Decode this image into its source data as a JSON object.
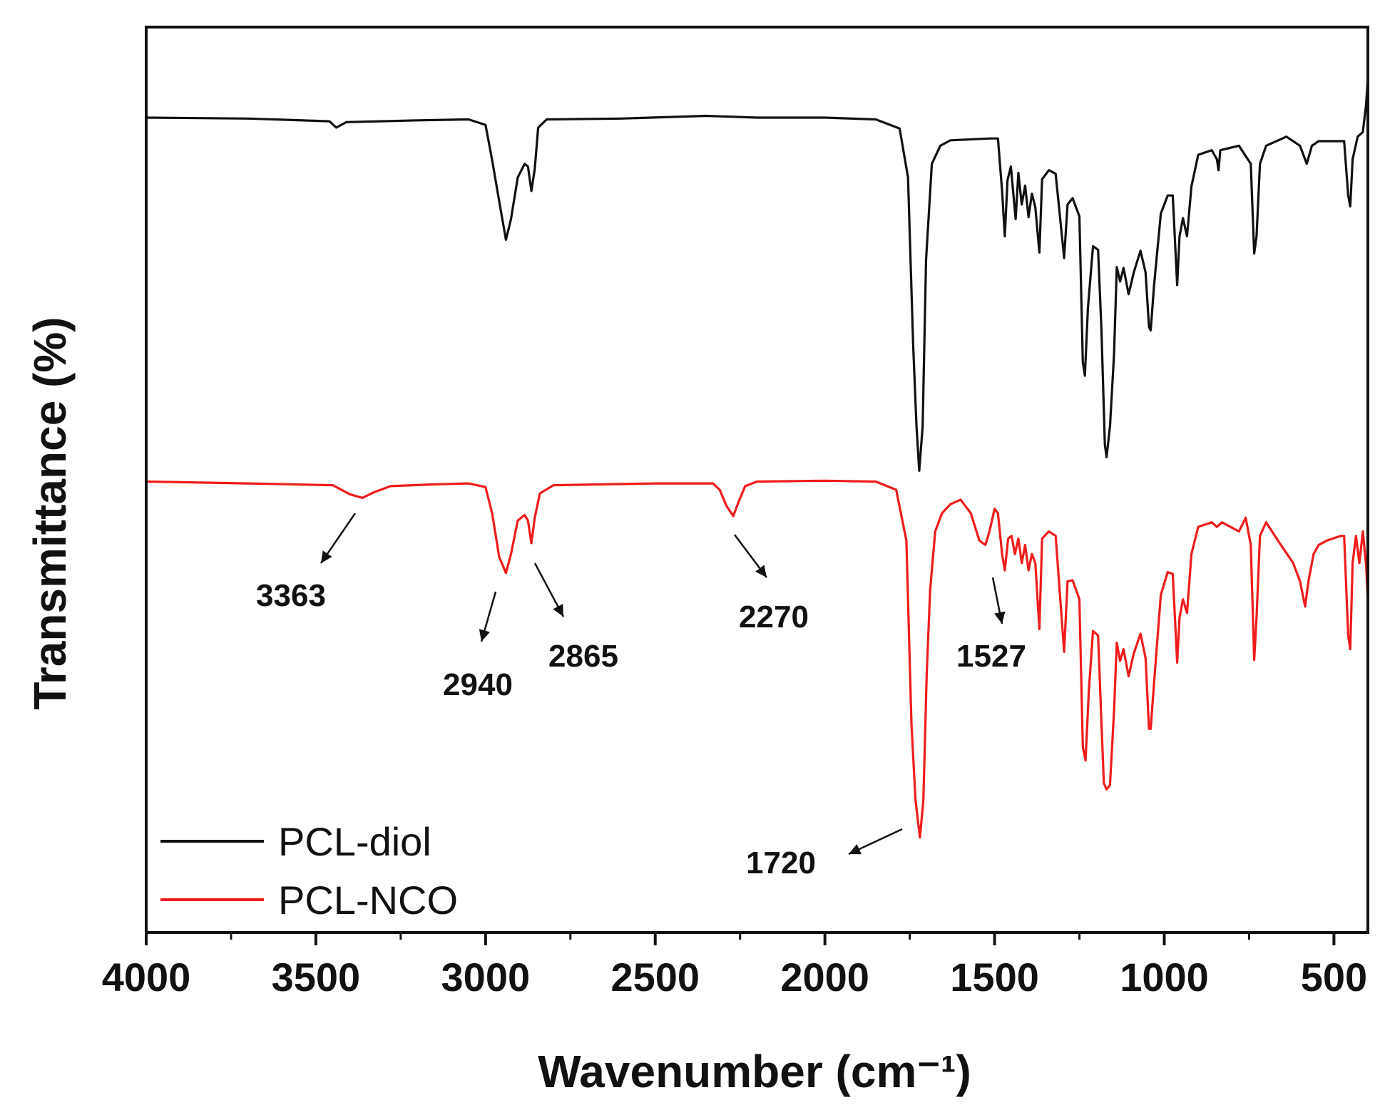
{
  "chart_data": {
    "type": "line",
    "title": "",
    "xlabel": "Wavenumber (cm⁻¹)",
    "ylabel": "Transmittance (%)",
    "xlim": [
      4000,
      400
    ],
    "ylim": [
      0,
      100
    ],
    "x_reversed": true,
    "y_ticks_shown": false,
    "grid": false,
    "legend_position": "bottom-left",
    "x_ticks": [
      4000,
      3500,
      3000,
      2500,
      2000,
      1500,
      1000,
      500
    ],
    "x_tick_labels": [
      "4000",
      "3500",
      "3000",
      "2500",
      "2000",
      "1500",
      "1000",
      "500"
    ],
    "series": [
      {
        "name": "PCL-diol",
        "color": "#111111",
        "points": [
          [
            4000,
            90.0
          ],
          [
            3700,
            89.9
          ],
          [
            3460,
            89.6
          ],
          [
            3440,
            88.9
          ],
          [
            3410,
            89.5
          ],
          [
            3200,
            89.7
          ],
          [
            3050,
            89.8
          ],
          [
            3000,
            89.2
          ],
          [
            2980,
            85.2
          ],
          [
            2960,
            80.8
          ],
          [
            2940,
            76.5
          ],
          [
            2925,
            78.8
          ],
          [
            2905,
            83.4
          ],
          [
            2885,
            84.9
          ],
          [
            2875,
            84.6
          ],
          [
            2865,
            81.9
          ],
          [
            2855,
            84.3
          ],
          [
            2845,
            88.9
          ],
          [
            2820,
            89.8
          ],
          [
            2600,
            89.9
          ],
          [
            2350,
            90.2
          ],
          [
            2200,
            90.0
          ],
          [
            2000,
            90.0
          ],
          [
            1850,
            89.8
          ],
          [
            1780,
            88.8
          ],
          [
            1755,
            83.4
          ],
          [
            1740,
            64.9
          ],
          [
            1730,
            55.9
          ],
          [
            1722,
            51.0
          ],
          [
            1712,
            55.9
          ],
          [
            1702,
            74.3
          ],
          [
            1685,
            84.9
          ],
          [
            1660,
            86.9
          ],
          [
            1630,
            87.5
          ],
          [
            1510,
            87.7
          ],
          [
            1490,
            87.7
          ],
          [
            1478,
            81.9
          ],
          [
            1470,
            76.9
          ],
          [
            1462,
            83.1
          ],
          [
            1452,
            84.6
          ],
          [
            1438,
            78.8
          ],
          [
            1430,
            83.9
          ],
          [
            1420,
            80.4
          ],
          [
            1410,
            82.5
          ],
          [
            1400,
            79.0
          ],
          [
            1390,
            81.6
          ],
          [
            1380,
            80.1
          ],
          [
            1368,
            75.1
          ],
          [
            1360,
            83.2
          ],
          [
            1340,
            84.2
          ],
          [
            1320,
            83.8
          ],
          [
            1295,
            74.5
          ],
          [
            1285,
            80.4
          ],
          [
            1270,
            81.1
          ],
          [
            1250,
            79.1
          ],
          [
            1240,
            63.0
          ],
          [
            1234,
            61.5
          ],
          [
            1225,
            68.9
          ],
          [
            1210,
            75.8
          ],
          [
            1195,
            75.4
          ],
          [
            1185,
            66.4
          ],
          [
            1175,
            53.9
          ],
          [
            1170,
            52.5
          ],
          [
            1160,
            55.9
          ],
          [
            1148,
            63.9
          ],
          [
            1140,
            73.5
          ],
          [
            1130,
            71.9
          ],
          [
            1120,
            73.4
          ],
          [
            1105,
            70.5
          ],
          [
            1090,
            72.9
          ],
          [
            1070,
            75.3
          ],
          [
            1055,
            72.9
          ],
          [
            1045,
            66.9
          ],
          [
            1040,
            66.5
          ],
          [
            1030,
            71.5
          ],
          [
            1010,
            79.4
          ],
          [
            990,
            81.4
          ],
          [
            975,
            81.4
          ],
          [
            962,
            71.5
          ],
          [
            955,
            76.9
          ],
          [
            945,
            78.9
          ],
          [
            933,
            76.9
          ],
          [
            920,
            82.4
          ],
          [
            900,
            85.9
          ],
          [
            860,
            86.4
          ],
          [
            845,
            85.4
          ],
          [
            840,
            84.2
          ],
          [
            835,
            86.4
          ],
          [
            780,
            86.9
          ],
          [
            745,
            84.9
          ],
          [
            735,
            75.0
          ],
          [
            728,
            76.9
          ],
          [
            718,
            84.9
          ],
          [
            700,
            86.9
          ],
          [
            640,
            87.9
          ],
          [
            600,
            86.9
          ],
          [
            580,
            84.9
          ],
          [
            565,
            86.9
          ],
          [
            545,
            87.4
          ],
          [
            520,
            87.4
          ],
          [
            470,
            87.4
          ],
          [
            458,
            81.4
          ],
          [
            452,
            80.2
          ],
          [
            445,
            85.4
          ],
          [
            430,
            87.9
          ],
          [
            415,
            88.4
          ],
          [
            405,
            91.5
          ],
          [
            400,
            94.5
          ]
        ]
      },
      {
        "name": "PCL-NCO",
        "color": "#ee1c1c",
        "points": [
          [
            4000,
            49.8
          ],
          [
            3700,
            49.6
          ],
          [
            3450,
            49.4
          ],
          [
            3400,
            48.4
          ],
          [
            3363,
            48.0
          ],
          [
            3330,
            48.6
          ],
          [
            3280,
            49.3
          ],
          [
            3150,
            49.5
          ],
          [
            3050,
            49.6
          ],
          [
            3000,
            49.2
          ],
          [
            2980,
            46.2
          ],
          [
            2960,
            41.5
          ],
          [
            2940,
            39.7
          ],
          [
            2925,
            41.8
          ],
          [
            2905,
            45.5
          ],
          [
            2885,
            46.1
          ],
          [
            2875,
            45.5
          ],
          [
            2865,
            43.0
          ],
          [
            2855,
            45.8
          ],
          [
            2840,
            48.5
          ],
          [
            2800,
            49.4
          ],
          [
            2500,
            49.6
          ],
          [
            2330,
            49.6
          ],
          [
            2310,
            48.9
          ],
          [
            2290,
            47.1
          ],
          [
            2270,
            46.0
          ],
          [
            2255,
            47.5
          ],
          [
            2235,
            49.3
          ],
          [
            2200,
            49.8
          ],
          [
            2000,
            49.9
          ],
          [
            1850,
            49.8
          ],
          [
            1790,
            48.9
          ],
          [
            1760,
            43.3
          ],
          [
            1745,
            23.1
          ],
          [
            1733,
            14.6
          ],
          [
            1720,
            10.5
          ],
          [
            1710,
            14.6
          ],
          [
            1700,
            28.5
          ],
          [
            1690,
            37.8
          ],
          [
            1675,
            44.3
          ],
          [
            1655,
            46.3
          ],
          [
            1630,
            47.3
          ],
          [
            1600,
            47.8
          ],
          [
            1570,
            46.3
          ],
          [
            1545,
            43.3
          ],
          [
            1527,
            42.8
          ],
          [
            1515,
            44.3
          ],
          [
            1500,
            46.8
          ],
          [
            1490,
            46.3
          ],
          [
            1478,
            41.8
          ],
          [
            1470,
            40.0
          ],
          [
            1460,
            43.5
          ],
          [
            1450,
            43.8
          ],
          [
            1440,
            41.8
          ],
          [
            1430,
            43.5
          ],
          [
            1420,
            40.8
          ],
          [
            1410,
            42.8
          ],
          [
            1400,
            40.0
          ],
          [
            1390,
            41.8
          ],
          [
            1380,
            40.8
          ],
          [
            1368,
            33.5
          ],
          [
            1360,
            43.5
          ],
          [
            1340,
            44.3
          ],
          [
            1320,
            43.8
          ],
          [
            1295,
            31.0
          ],
          [
            1285,
            38.8
          ],
          [
            1270,
            38.9
          ],
          [
            1250,
            36.8
          ],
          [
            1240,
            20.5
          ],
          [
            1232,
            19.0
          ],
          [
            1222,
            26.9
          ],
          [
            1210,
            33.3
          ],
          [
            1195,
            32.8
          ],
          [
            1185,
            23.0
          ],
          [
            1178,
            16.5
          ],
          [
            1170,
            15.8
          ],
          [
            1160,
            16.3
          ],
          [
            1148,
            24.5
          ],
          [
            1140,
            32.0
          ],
          [
            1130,
            30.0
          ],
          [
            1120,
            31.3
          ],
          [
            1105,
            28.3
          ],
          [
            1090,
            30.8
          ],
          [
            1070,
            33.0
          ],
          [
            1055,
            30.3
          ],
          [
            1045,
            22.5
          ],
          [
            1040,
            22.5
          ],
          [
            1030,
            27.6
          ],
          [
            1010,
            37.3
          ],
          [
            990,
            39.8
          ],
          [
            975,
            39.6
          ],
          [
            962,
            29.8
          ],
          [
            955,
            34.8
          ],
          [
            945,
            36.8
          ],
          [
            933,
            35.3
          ],
          [
            920,
            41.8
          ],
          [
            900,
            44.8
          ],
          [
            860,
            45.3
          ],
          [
            845,
            44.8
          ],
          [
            830,
            45.3
          ],
          [
            780,
            44.3
          ],
          [
            760,
            45.8
          ],
          [
            745,
            42.8
          ],
          [
            735,
            30.1
          ],
          [
            728,
            34.8
          ],
          [
            718,
            43.8
          ],
          [
            700,
            45.3
          ],
          [
            660,
            43.0
          ],
          [
            620,
            40.8
          ],
          [
            600,
            38.8
          ],
          [
            585,
            36.0
          ],
          [
            575,
            38.8
          ],
          [
            560,
            41.8
          ],
          [
            545,
            42.8
          ],
          [
            520,
            43.3
          ],
          [
            480,
            43.8
          ],
          [
            470,
            43.8
          ],
          [
            458,
            32.8
          ],
          [
            452,
            31.3
          ],
          [
            445,
            40.8
          ],
          [
            435,
            43.8
          ],
          [
            425,
            40.8
          ],
          [
            415,
            44.3
          ],
          [
            405,
            40.5
          ],
          [
            400,
            36.5
          ]
        ]
      }
    ],
    "annotations": [
      {
        "label": "3363",
        "x": 3363,
        "y": 48.0
      },
      {
        "label": "2940",
        "x": 2940,
        "y": 39.7
      },
      {
        "label": "2865",
        "x": 2865,
        "y": 43.0
      },
      {
        "label": "2270",
        "x": 2270,
        "y": 46.0
      },
      {
        "label": "1527",
        "x": 1527,
        "y": 42.8
      },
      {
        "label": "1720",
        "x": 1720,
        "y": 10.5
      }
    ]
  }
}
